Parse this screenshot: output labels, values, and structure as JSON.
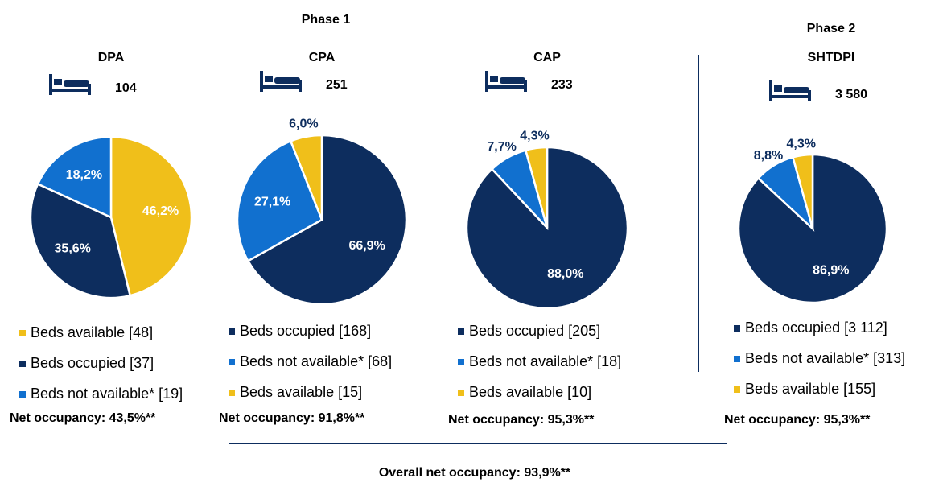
{
  "headings": {
    "phase_1": "Phase 1",
    "phase_2": "Phase 2",
    "overall": "Overall net occupancy: 93,9%**"
  },
  "chart_data": [
    {
      "type": "pie",
      "title": "DPA",
      "beds": "104",
      "categories": [
        "Beds available  [48]",
        "Beds occupied [37]",
        "Beds not available* [19]"
      ],
      "values": [
        46.2,
        35.6,
        18.2
      ],
      "value_labels": [
        "46,2%",
        "35,6%",
        "18,2%"
      ],
      "colors": [
        "#f0bf1a",
        "#0d2d5e",
        "#1170cf"
      ],
      "note": "Net occupancy: 43,5%**"
    },
    {
      "type": "pie",
      "title": "CPA",
      "beds": "251",
      "categories": [
        "Beds occupied [168]",
        "Beds not available* [68]",
        "Beds available [15]"
      ],
      "values": [
        66.9,
        27.1,
        6.0
      ],
      "value_labels": [
        "66,9%",
        "27,1%",
        "6,0%"
      ],
      "colors": [
        "#0d2d5e",
        "#1170cf",
        "#f0bf1a"
      ],
      "note": "Net occupancy: 91,8%**"
    },
    {
      "type": "pie",
      "title": "CAP",
      "beds": "233",
      "categories": [
        "Beds occupied [205]",
        "Beds not available* [18]",
        "Beds available [10]"
      ],
      "values": [
        88.0,
        7.7,
        4.3
      ],
      "value_labels": [
        "88,0%",
        "7,7%",
        "4,3%"
      ],
      "colors": [
        "#0d2d5e",
        "#1170cf",
        "#f0bf1a"
      ],
      "note": "Net occupancy: 95,3%**"
    },
    {
      "type": "pie",
      "title": "SHTDPI",
      "beds": "3 580",
      "categories": [
        "Beds occupied [3 112]",
        "Beds not available* [313]",
        "Beds available [155]"
      ],
      "values": [
        86.9,
        8.8,
        4.3
      ],
      "value_labels": [
        "86,9%",
        "8,8%",
        "4,3%"
      ],
      "colors": [
        "#0d2d5e",
        "#1170cf",
        "#f0bf1a"
      ],
      "note": "Net occupancy: 95,3%**"
    }
  ]
}
